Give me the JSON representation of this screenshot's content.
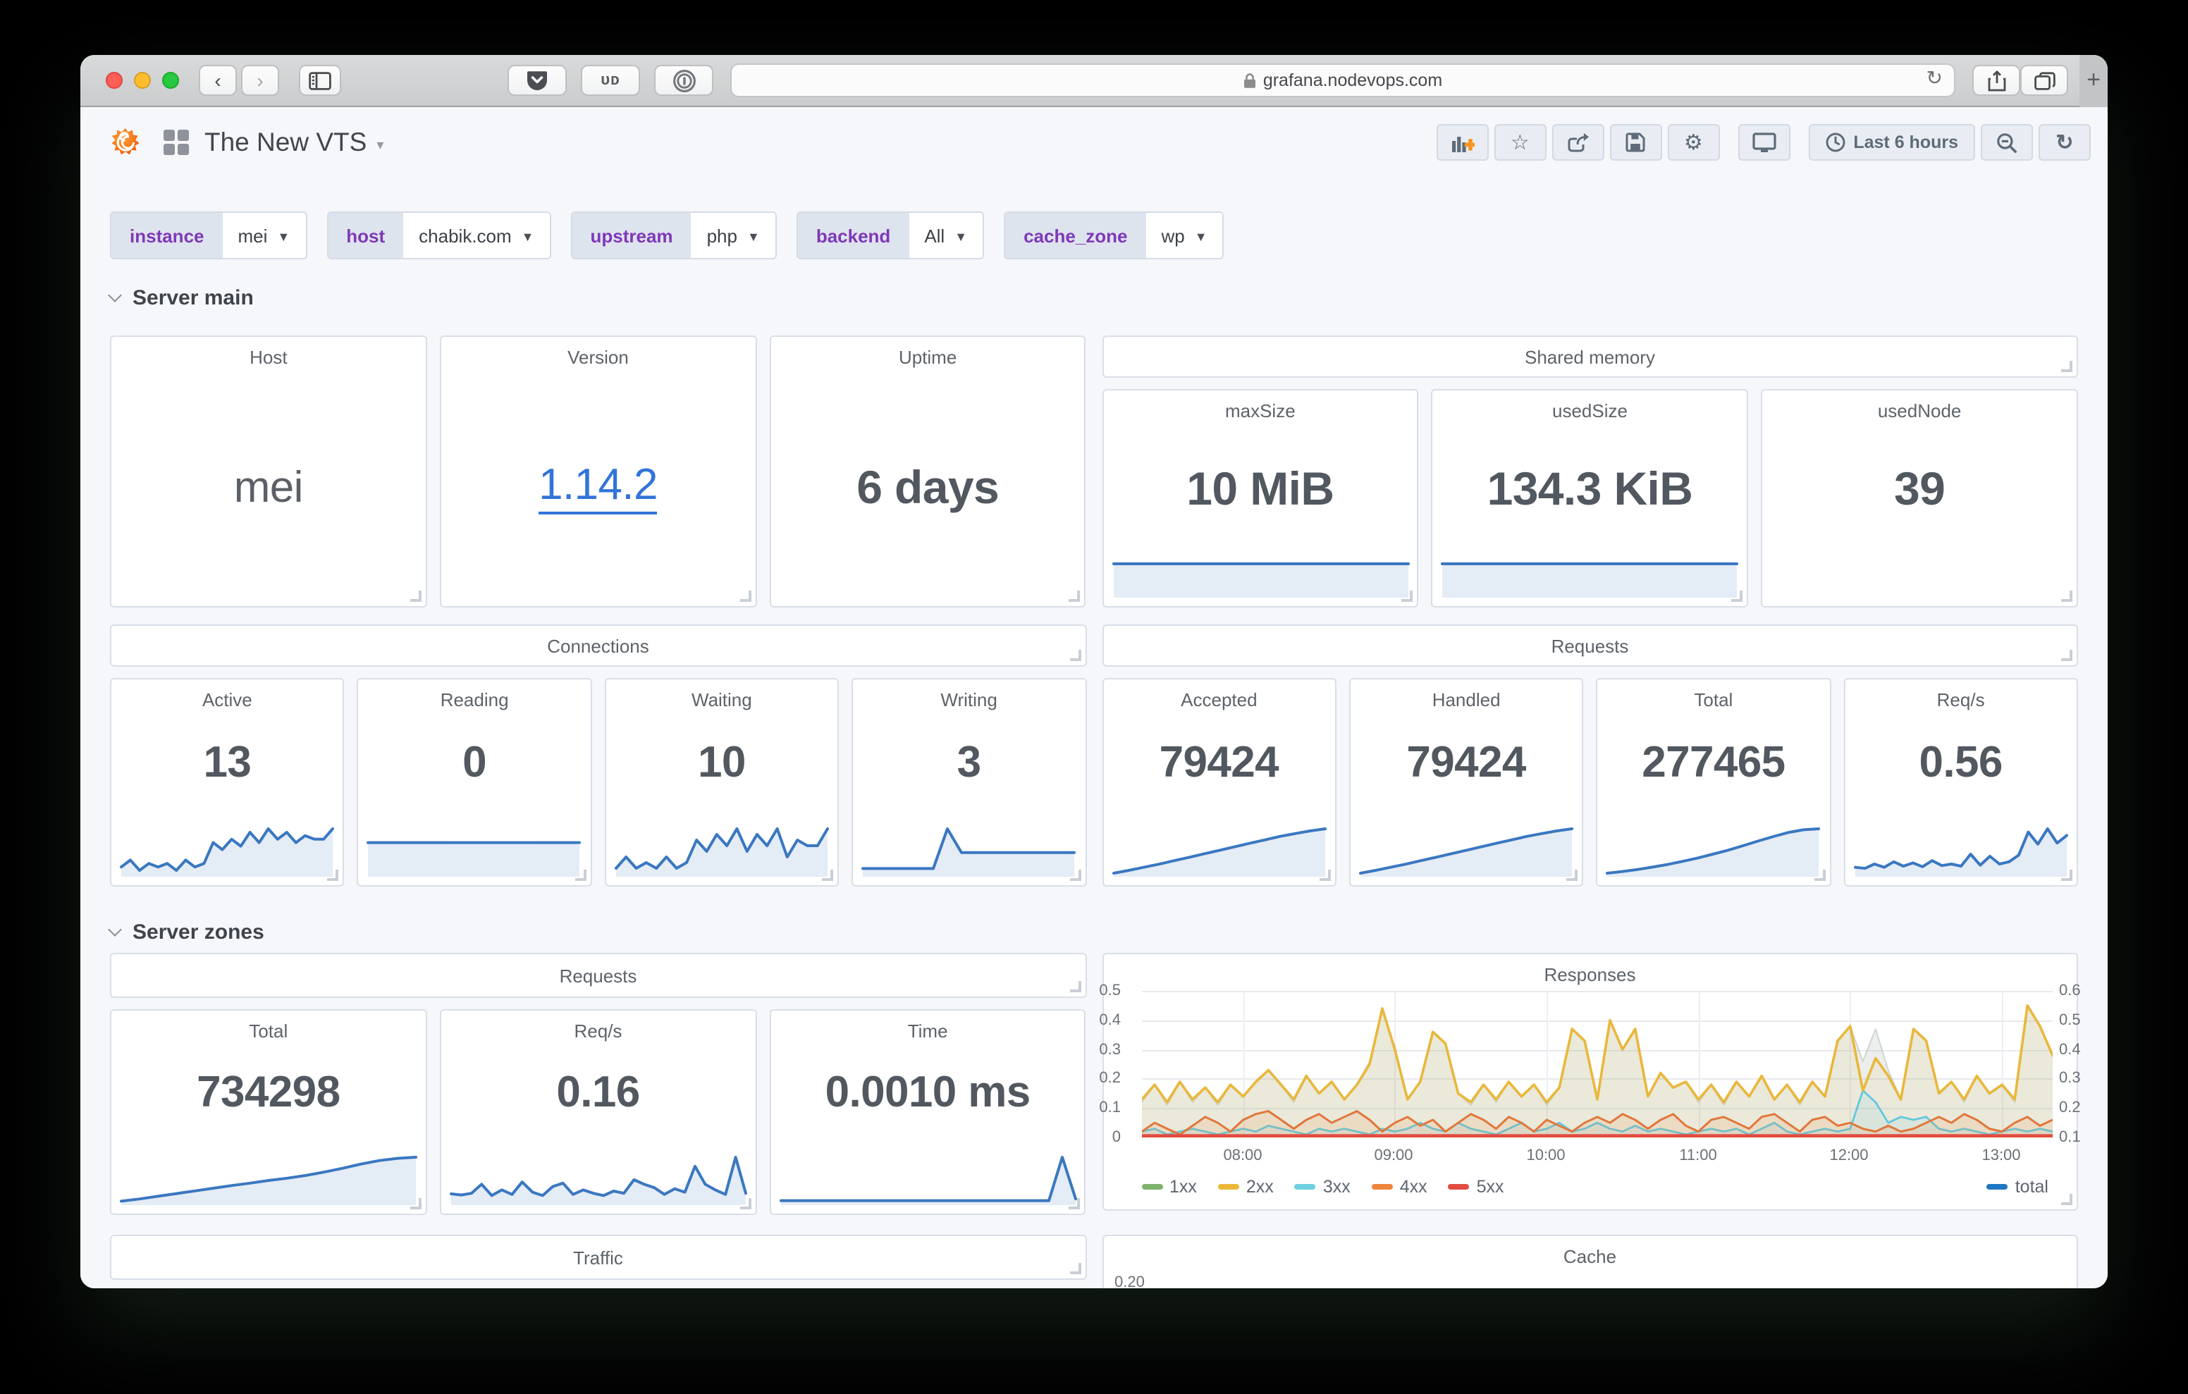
{
  "browser": {
    "url": "grafana.nodevops.com",
    "extension_ud": "ᴜᴅ"
  },
  "navbar": {
    "title": "The New VTS",
    "time_range_label": "Last 6 hours"
  },
  "filters": {
    "instance": {
      "label": "instance",
      "value": "mei"
    },
    "host": {
      "label": "host",
      "value": "chabik.com"
    },
    "upstream": {
      "label": "upstream",
      "value": "php"
    },
    "backend": {
      "label": "backend",
      "value": "All"
    },
    "cache_zone": {
      "label": "cache_zone",
      "value": "wp"
    }
  },
  "sections": {
    "main": "Server main",
    "zones": "Server zones"
  },
  "server_main": {
    "host": {
      "title": "Host",
      "value": "mei"
    },
    "version": {
      "title": "Version",
      "value": "1.14.2"
    },
    "uptime": {
      "title": "Uptime",
      "value": "6 days"
    },
    "shared_memory": {
      "header": "Shared memory",
      "max_size": {
        "title": "maxSize",
        "value": "10 MiB",
        "spark": [
          1,
          1
        ]
      },
      "used_size": {
        "title": "usedSize",
        "value": "134.3 KiB",
        "spark": [
          1,
          1
        ]
      },
      "used_node": {
        "title": "usedNode",
        "value": "39"
      }
    },
    "connections": {
      "header": "Connections",
      "active": {
        "title": "Active",
        "value": "13",
        "spark": [
          2,
          4,
          1,
          3,
          2,
          3,
          1,
          4,
          2,
          3,
          9,
          7,
          10,
          8,
          12,
          9,
          13,
          10,
          12,
          9,
          11,
          10,
          10,
          13
        ]
      },
      "reading": {
        "title": "Reading",
        "value": "0",
        "spark": [
          0,
          0
        ]
      },
      "waiting": {
        "title": "Waiting",
        "value": "10",
        "spark": [
          1,
          3,
          1,
          2,
          1,
          3,
          1,
          2,
          6,
          4,
          7,
          5,
          8,
          4,
          7,
          5,
          8,
          3,
          6,
          5,
          5,
          8
        ]
      },
      "writing": {
        "title": "Writing",
        "value": "3",
        "spark": [
          0.4,
          0.4,
          0.4,
          0.4,
          0.4,
          0.4,
          3.4,
          1.6,
          1.6,
          1.6,
          1.6,
          1.6,
          1.6,
          1.6,
          1.6,
          1.6
        ]
      }
    },
    "requests": {
      "header": "Requests",
      "accepted": {
        "title": "Accepted",
        "value": "79424",
        "spark": [
          0.2,
          1,
          1.9,
          2.8,
          3.8,
          4.8,
          5.8,
          6.8,
          7.8,
          8.8,
          9.8,
          10.8,
          11.6,
          12.4,
          13
        ]
      },
      "handled": {
        "title": "Handled",
        "value": "79424",
        "spark": [
          0.2,
          1,
          1.9,
          2.8,
          3.8,
          4.8,
          5.8,
          6.8,
          7.8,
          8.8,
          9.8,
          10.8,
          11.6,
          12.4,
          13
        ]
      },
      "total": {
        "title": "Total",
        "value": "277465",
        "spark": [
          0.2,
          0.7,
          1.3,
          2,
          2.8,
          3.7,
          4.7,
          5.8,
          7,
          8.3,
          9.7,
          11,
          12.2,
          13,
          13.3
        ]
      },
      "reqs": {
        "title": "Req/s",
        "value": "0.56",
        "spark": [
          1.2,
          1,
          1.8,
          1.2,
          2.2,
          1.4,
          2,
          1.3,
          2.4,
          1.5,
          1.8,
          1.4,
          3.6,
          1.6,
          3.2,
          1.8,
          2.2,
          3.4,
          7.6,
          5.4,
          8.2,
          5.6,
          7
        ]
      }
    }
  },
  "server_zones": {
    "requests_header": "Requests",
    "total": {
      "title": "Total",
      "value": "734298",
      "spark": [
        0.3,
        0.9,
        1.6,
        2.3,
        3,
        3.7,
        4.4,
        5,
        5.7,
        6.3,
        7,
        7.9,
        8.9,
        10,
        10.9,
        11.5,
        11.8
      ]
    },
    "reqs": {
      "title": "Req/s",
      "value": "0.16",
      "spark": [
        1.5,
        1.3,
        1.6,
        3.2,
        1.2,
        2.2,
        1.4,
        3.6,
        1.8,
        1.2,
        2.8,
        3.4,
        1.4,
        2.2,
        1.6,
        1.2,
        2,
        1.6,
        4,
        3.2,
        2.6,
        1.4,
        2.4,
        1.8,
        6.4,
        3.2,
        2.2,
        1.4,
        8,
        1.6
      ]
    },
    "time": {
      "title": "Time",
      "value": "0.0010 ms",
      "spark": [
        0.3,
        0.3,
        0.3,
        0.3,
        0.3,
        0.3,
        0.3,
        0.3,
        0.3,
        0.3,
        0.3,
        0.3,
        0.3,
        0.3,
        0.3,
        0.3,
        0.3,
        0.3,
        0.3,
        0.3,
        0.3,
        8,
        0.6
      ]
    },
    "traffic_header": "Traffic",
    "cache": {
      "header": "Cache",
      "visible_tick": "0.20"
    }
  },
  "chart_data": {
    "type": "line",
    "title": "Responses",
    "x_ticks": [
      "08:00",
      "09:00",
      "10:00",
      "11:00",
      "12:00",
      "13:00"
    ],
    "x_range": [
      "07:20",
      "13:20"
    ],
    "left_ticks": [
      "0.5",
      "0.4",
      "0.3",
      "0.2",
      "0.1",
      "0"
    ],
    "right_ticks": [
      "0.6",
      "0.5",
      "0.4",
      "0.3",
      "0.2",
      "0.1"
    ],
    "left_range": [
      0,
      0.5
    ],
    "right_range": [
      0.1,
      0.6
    ],
    "grid": true,
    "legend_position": "bottom",
    "series": [
      {
        "name": "1xx",
        "color": "#7eb26d",
        "axis": "left",
        "const": 0
      },
      {
        "name": "2xx",
        "color": "#eab839",
        "axis": "left",
        "values": [
          0.13,
          0.18,
          0.12,
          0.19,
          0.13,
          0.17,
          0.12,
          0.18,
          0.14,
          0.19,
          0.23,
          0.18,
          0.13,
          0.21,
          0.15,
          0.19,
          0.13,
          0.18,
          0.25,
          0.44,
          0.3,
          0.13,
          0.19,
          0.36,
          0.32,
          0.15,
          0.12,
          0.18,
          0.13,
          0.19,
          0.14,
          0.18,
          0.12,
          0.17,
          0.37,
          0.33,
          0.13,
          0.4,
          0.3,
          0.37,
          0.14,
          0.22,
          0.17,
          0.19,
          0.13,
          0.18,
          0.12,
          0.19,
          0.14,
          0.21,
          0.13,
          0.18,
          0.12,
          0.19,
          0.14,
          0.33,
          0.38,
          0.16,
          0.27,
          0.21,
          0.13,
          0.37,
          0.33,
          0.15,
          0.19,
          0.13,
          0.21,
          0.15,
          0.18,
          0.13,
          0.45,
          0.38,
          0.28
        ]
      },
      {
        "name": "3xx",
        "color": "#6ed0e0",
        "axis": "left",
        "values": [
          0.02,
          0.03,
          0.01,
          0.02,
          0.03,
          0.02,
          0.01,
          0.02,
          0.03,
          0.02,
          0.04,
          0.03,
          0.02,
          0.01,
          0.03,
          0.02,
          0.03,
          0.02,
          0.01,
          0.03,
          0.02,
          0.03,
          0.05,
          0.03,
          0.02,
          0.05,
          0.03,
          0.02,
          0.01,
          0.03,
          0.05,
          0.02,
          0.03,
          0.05,
          0.02,
          0.03,
          0.05,
          0.03,
          0.02,
          0.04,
          0.02,
          0.03,
          0.02,
          0.01,
          0.02,
          0.03,
          0.02,
          0.03,
          0.01,
          0.03,
          0.05,
          0.02,
          0.01,
          0.02,
          0.03,
          0.02,
          0.03,
          0.16,
          0.12,
          0.05,
          0.07,
          0.06,
          0.07,
          0.03,
          0.02,
          0.03,
          0.02,
          0.01,
          0.02,
          0.03,
          0.02,
          0.03,
          0.02
        ]
      },
      {
        "name": "4xx",
        "color": "#ef843c",
        "axis": "left",
        "values": [
          0.02,
          0.05,
          0.03,
          0.01,
          0.04,
          0.07,
          0.05,
          0.02,
          0.06,
          0.08,
          0.09,
          0.06,
          0.03,
          0.06,
          0.08,
          0.05,
          0.07,
          0.09,
          0.06,
          0.02,
          0.05,
          0.07,
          0.04,
          0.06,
          0.02,
          0.05,
          0.08,
          0.06,
          0.03,
          0.07,
          0.05,
          0.02,
          0.06,
          0.04,
          0.02,
          0.05,
          0.07,
          0.05,
          0.08,
          0.06,
          0.03,
          0.06,
          0.08,
          0.04,
          0.02,
          0.06,
          0.07,
          0.05,
          0.03,
          0.07,
          0.08,
          0.05,
          0.02,
          0.06,
          0.07,
          0.04,
          0.05,
          0.03,
          0.02,
          0.04,
          0.02,
          0.03,
          0.05,
          0.07,
          0.05,
          0.08,
          0.06,
          0.03,
          0.02,
          0.05,
          0.07,
          0.04,
          0.06
        ]
      },
      {
        "name": "5xx",
        "color": "#e24d42",
        "axis": "left",
        "const": 0
      },
      {
        "name": "total",
        "color": "#1f78c1",
        "axis": "right",
        "values": [
          0.22,
          0.28,
          0.21,
          0.29,
          0.22,
          0.27,
          0.21,
          0.28,
          0.24,
          0.29,
          0.33,
          0.28,
          0.22,
          0.31,
          0.25,
          0.29,
          0.23,
          0.28,
          0.36,
          0.53,
          0.41,
          0.23,
          0.29,
          0.46,
          0.42,
          0.25,
          0.21,
          0.28,
          0.22,
          0.29,
          0.24,
          0.28,
          0.21,
          0.27,
          0.47,
          0.43,
          0.23,
          0.5,
          0.4,
          0.47,
          0.24,
          0.32,
          0.27,
          0.29,
          0.22,
          0.28,
          0.21,
          0.29,
          0.24,
          0.31,
          0.23,
          0.28,
          0.21,
          0.29,
          0.24,
          0.43,
          0.48,
          0.36,
          0.47,
          0.33,
          0.23,
          0.47,
          0.43,
          0.25,
          0.29,
          0.22,
          0.31,
          0.25,
          0.28,
          0.22,
          0.55,
          0.48,
          0.38
        ]
      }
    ]
  }
}
